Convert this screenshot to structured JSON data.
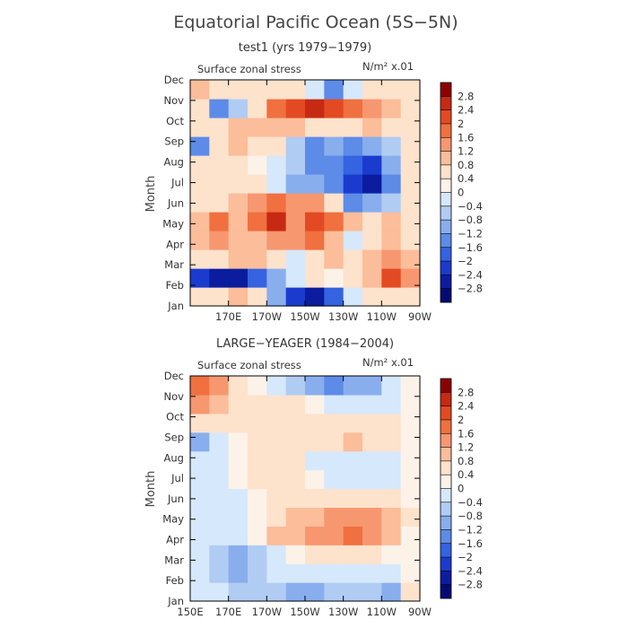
{
  "title": "Equatorial Pacific Ocean (5S−5N)",
  "colorbar_levels": [
    "2.8",
    "2.4",
    "2",
    "1.6",
    "1.2",
    "0.8",
    "0.4",
    "0",
    "−0.4",
    "−0.8",
    "−1.2",
    "−1.6",
    "−2",
    "−2.4",
    "−2.8"
  ],
  "colorbar_colors": [
    "#8b0000",
    "#c62a12",
    "#e34a23",
    "#f0703f",
    "#f79770",
    "#fbbd9a",
    "#fde2cc",
    "#fdf2e8",
    "#d6e8fb",
    "#b1ccf3",
    "#89aeee",
    "#5d8be8",
    "#3563e1",
    "#1b3bcf",
    "#0b1c9e",
    "#040a72"
  ],
  "chart_data": [
    {
      "type": "heatmap",
      "subtitle": "test1 (yrs 1979−1979)",
      "variable_label": "Surface zonal stress",
      "units": "N/m² x.01",
      "ylabel": "Month",
      "yticks": [
        "Jan",
        "Feb",
        "Mar",
        "Apr",
        "May",
        "Jun",
        "Jul",
        "Aug",
        "Sep",
        "Oct",
        "Nov",
        "Dec"
      ],
      "xticks": [
        "170E",
        "170W",
        "150W",
        "130W",
        "110W",
        "90W"
      ],
      "x_range": [
        "150E",
        "90W"
      ],
      "y_range": [
        "Jan",
        "Dec"
      ],
      "x_lon": [
        155,
        165,
        175,
        185,
        195,
        205,
        215,
        225,
        235,
        245,
        255,
        265
      ],
      "month_index": [
        0,
        1,
        2,
        3,
        4,
        5,
        6,
        7,
        8,
        9,
        10,
        11
      ],
      "values": [
        [
          0.4,
          0.4,
          0.8,
          0.4,
          -1.2,
          -2.4,
          -2.8,
          -2.0,
          -0.4,
          0.4,
          0.4,
          0.4
        ],
        [
          -2.4,
          -2.8,
          -2.8,
          -2.0,
          -1.2,
          -0.4,
          0.4,
          0.0,
          0.4,
          0.8,
          2.0,
          1.2
        ],
        [
          0.4,
          0.4,
          0.8,
          0.8,
          0.4,
          -0.4,
          0.4,
          0.8,
          0.4,
          0.8,
          1.2,
          0.8
        ],
        [
          0.8,
          1.2,
          0.8,
          0.8,
          1.2,
          1.2,
          1.6,
          0.8,
          -0.4,
          0.4,
          0.8,
          0.4
        ],
        [
          0.8,
          1.6,
          0.8,
          1.6,
          2.4,
          1.2,
          2.0,
          1.6,
          0.8,
          0.4,
          0.8,
          0.4
        ],
        [
          0.4,
          0.4,
          0.8,
          1.2,
          1.6,
          1.2,
          1.2,
          0.4,
          -1.6,
          -1.2,
          -0.8,
          0.4
        ],
        [
          0.4,
          0.4,
          0.4,
          0.4,
          -0.4,
          -1.2,
          -1.2,
          -1.6,
          -2.4,
          -2.8,
          -1.6,
          0.4
        ],
        [
          0.4,
          0.4,
          0.4,
          0.0,
          -0.4,
          -0.8,
          -1.6,
          -1.6,
          -2.0,
          -2.4,
          -1.2,
          0.4
        ],
        [
          -1.6,
          0.4,
          0.8,
          0.4,
          0.4,
          -0.8,
          -1.6,
          -1.2,
          -1.6,
          -1.2,
          -0.8,
          0.4
        ],
        [
          0.4,
          0.4,
          0.8,
          0.8,
          0.8,
          0.8,
          0.4,
          0.4,
          0.4,
          0.8,
          0.4,
          0.4
        ],
        [
          0.4,
          -1.6,
          -0.8,
          0.4,
          1.6,
          2.0,
          2.4,
          2.0,
          1.6,
          1.2,
          0.8,
          0.4
        ],
        [
          0.8,
          0.4,
          0.4,
          0.4,
          0.4,
          0.4,
          -0.4,
          -1.6,
          -0.4,
          0.4,
          0.4,
          0.4
        ]
      ]
    },
    {
      "type": "heatmap",
      "subtitle": "LARGE−YEAGER (1984−2004)",
      "variable_label": "Surface zonal stress",
      "units": "N/m² x.01",
      "ylabel": "Month",
      "yticks": [
        "Jan",
        "Feb",
        "Mar",
        "Apr",
        "May",
        "Jun",
        "Jul",
        "Aug",
        "Sep",
        "Oct",
        "Nov",
        "Dec"
      ],
      "xticks": [
        "150E",
        "170E",
        "170W",
        "150W",
        "130W",
        "110W",
        "90W"
      ],
      "x_range": [
        "150E",
        "90W"
      ],
      "y_range": [
        "Jan",
        "Dec"
      ],
      "x_lon": [
        155,
        165,
        175,
        185,
        195,
        205,
        215,
        225,
        235,
        245,
        255,
        265
      ],
      "month_index": [
        0,
        1,
        2,
        3,
        4,
        5,
        6,
        7,
        8,
        9,
        10,
        11
      ],
      "values": [
        [
          -0.4,
          -0.4,
          -0.8,
          -0.8,
          -0.8,
          -1.2,
          -1.2,
          -0.8,
          -0.8,
          -0.8,
          -1.2,
          0.4
        ],
        [
          -0.4,
          -0.8,
          -1.2,
          -0.8,
          -0.4,
          -0.4,
          -0.4,
          -0.4,
          -0.4,
          -0.4,
          -0.4,
          0.0
        ],
        [
          -0.4,
          -0.8,
          -1.2,
          -0.8,
          -0.4,
          0.0,
          0.4,
          0.4,
          0.4,
          0.4,
          0.0,
          0.0
        ],
        [
          -0.4,
          -0.4,
          -0.4,
          0.0,
          0.8,
          0.8,
          1.2,
          1.2,
          1.6,
          1.2,
          0.8,
          0.0
        ],
        [
          -0.4,
          -0.4,
          -0.4,
          0.0,
          0.4,
          0.8,
          0.8,
          1.2,
          1.2,
          1.2,
          0.8,
          0.4
        ],
        [
          -0.4,
          -0.4,
          -0.4,
          0.0,
          0.4,
          0.4,
          0.4,
          0.4,
          0.4,
          0.4,
          0.4,
          0.0
        ],
        [
          -0.4,
          -0.4,
          0.0,
          0.4,
          0.4,
          0.4,
          0.0,
          -0.4,
          -0.4,
          -0.4,
          -0.4,
          0.0
        ],
        [
          -0.4,
          -0.4,
          0.0,
          0.4,
          0.4,
          0.4,
          -0.4,
          -0.4,
          -0.4,
          -0.4,
          -0.4,
          0.0
        ],
        [
          -1.2,
          -0.4,
          0.0,
          0.4,
          0.4,
          0.4,
          0.4,
          0.4,
          0.8,
          0.4,
          0.4,
          0.0
        ],
        [
          0.4,
          0.4,
          0.4,
          0.4,
          0.4,
          0.4,
          0.4,
          0.4,
          0.4,
          0.4,
          0.4,
          0.0
        ],
        [
          1.2,
          0.8,
          0.4,
          0.4,
          0.4,
          0.4,
          0.0,
          -0.4,
          -0.4,
          -0.4,
          -0.4,
          0.0
        ],
        [
          1.6,
          1.2,
          0.4,
          0.0,
          -0.4,
          -0.8,
          -1.2,
          -1.6,
          -1.2,
          -1.2,
          -0.4,
          0.0
        ]
      ]
    }
  ]
}
